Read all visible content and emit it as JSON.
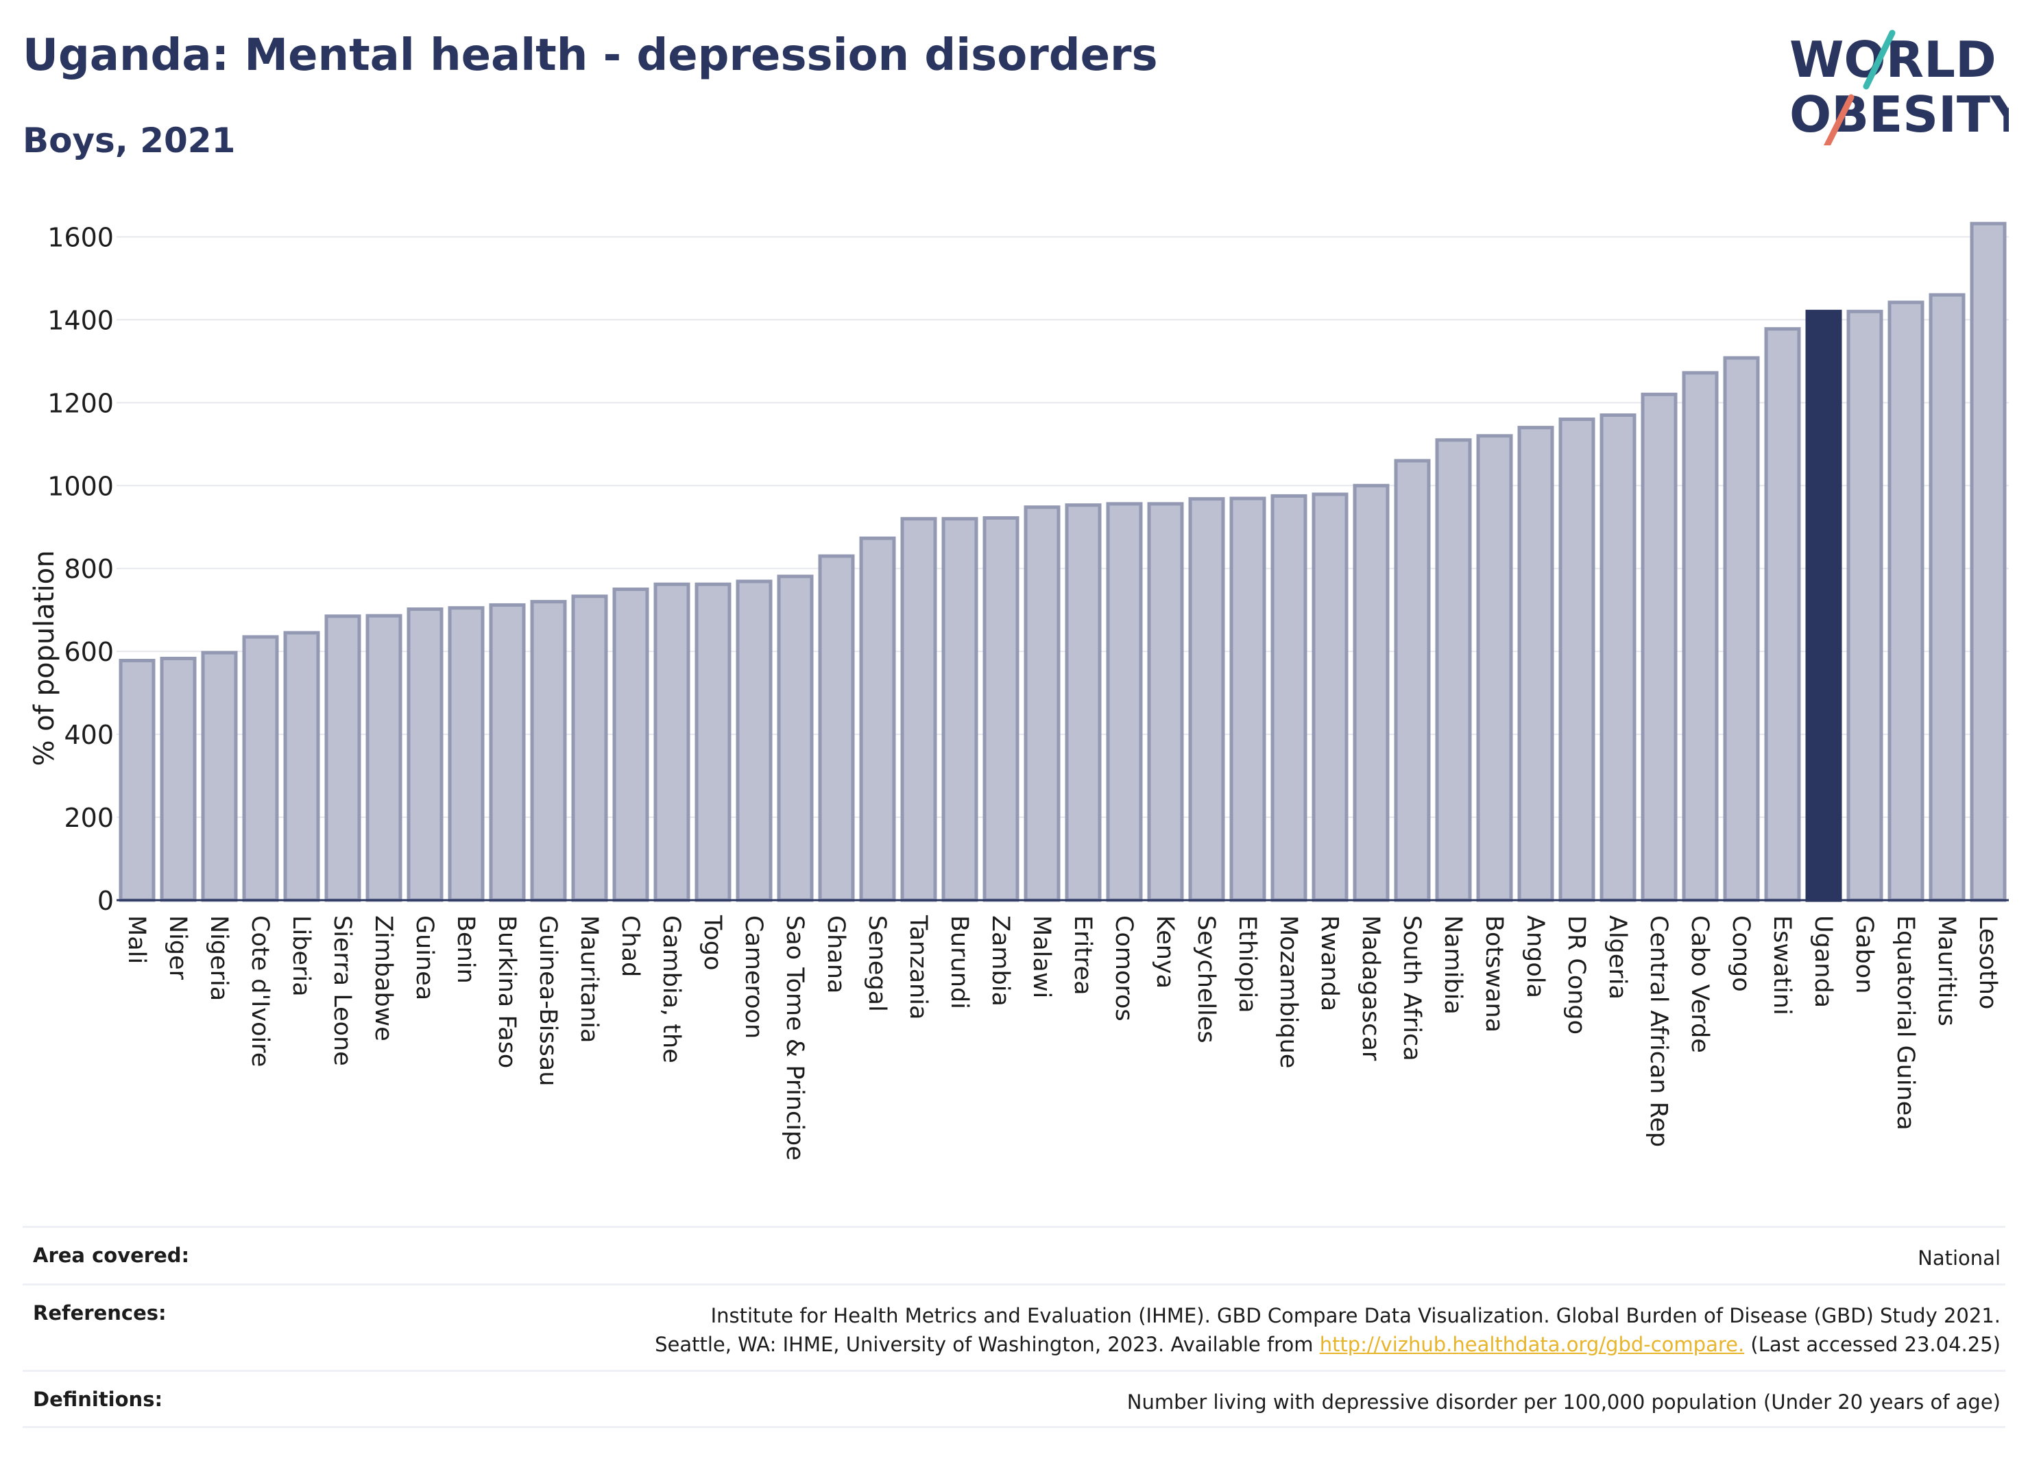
{
  "header": {
    "title": "Uganda: Mental health - depression disorders",
    "subtitle": "Boys, 2021"
  },
  "logo": {
    "line1": "WORLD",
    "line2": "OBESITY"
  },
  "colors": {
    "bar": "#bcc0d0",
    "bar_edge": "#9399b3",
    "highlight": "#2a3560",
    "grid": "#e6e8ee",
    "accent_teal": "#3bb8b0",
    "accent_coral": "#e4735f"
  },
  "chart_data": {
    "type": "bar",
    "title": "Uganda: Mental health - depression disorders",
    "subtitle": "Boys, 2021",
    "xlabel": "",
    "ylabel": "% of population",
    "ylim": [
      0,
      1700
    ],
    "yticks": [
      0,
      200,
      400,
      600,
      800,
      1000,
      1200,
      1400,
      1600
    ],
    "grid": true,
    "highlight": "Uganda",
    "categories": [
      "Mali",
      "Niger",
      "Nigeria",
      "Cote d'Ivoire",
      "Liberia",
      "Sierra Leone",
      "Zimbabwe",
      "Guinea",
      "Benin",
      "Burkina Faso",
      "Guinea-Bissau",
      "Mauritania",
      "Chad",
      "Gambia, the",
      "Togo",
      "Cameroon",
      "Sao Tome & Principe",
      "Ghana",
      "Senegal",
      "Tanzania",
      "Burundi",
      "Zambia",
      "Malawi",
      "Eritrea",
      "Comoros",
      "Kenya",
      "Seychelles",
      "Ethiopia",
      "Mozambique",
      "Rwanda",
      "Madagascar",
      "South Africa",
      "Namibia",
      "Botswana",
      "Angola",
      "DR Congo",
      "Algeria",
      "Central African Rep",
      "Cabo Verde",
      "Congo",
      "Eswatini",
      "Uganda",
      "Gabon",
      "Equatorial Guinea",
      "Mauritius",
      "Lesotho"
    ],
    "values": [
      578,
      583,
      597,
      635,
      645,
      685,
      686,
      702,
      705,
      712,
      720,
      733,
      750,
      762,
      762,
      769,
      781,
      830,
      873,
      920,
      920,
      922,
      948,
      953,
      956,
      956,
      968,
      969,
      975,
      979,
      1000,
      1060,
      1110,
      1120,
      1140,
      1160,
      1170,
      1220,
      1272,
      1308,
      1378,
      1420,
      1420,
      1442,
      1460,
      1632
    ]
  },
  "footer": {
    "area_label": "Area covered:",
    "area_value": "National",
    "references_label": "References:",
    "references_line1": "Institute for Health Metrics and Evaluation (IHME). GBD Compare Data Visualization. Global Burden of Disease (GBD) Study 2021.",
    "references_line2_prefix": "Seattle, WA: IHME, University of Washington, 2023. Available from",
    "references_link": "http://vizhub.healthdata.org/gbd-compare.",
    "references_line2_suffix": "(Last accessed 23.04.25)",
    "definitions_label": "Definitions:",
    "definitions_value": "Number living with depressive disorder per 100,000 population (Under 20 years of age)"
  }
}
